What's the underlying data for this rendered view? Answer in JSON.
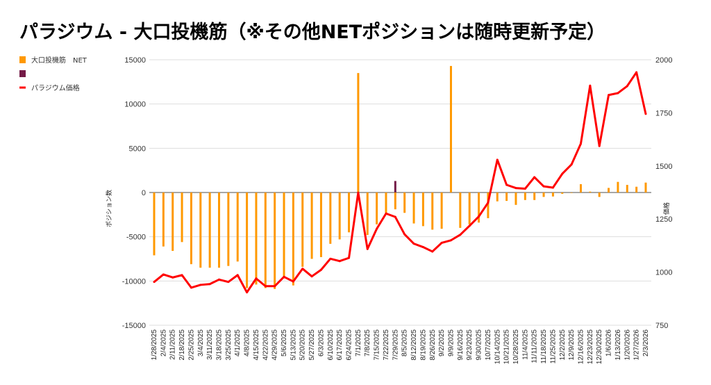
{
  "chart_data": {
    "type": "bar+line",
    "title": "パラジウム - 大口投機筋（※その他NETポジションは随時更新予定）",
    "ylabel_left": "ポジション数",
    "ylabel_right": "価格",
    "ylim_left": [
      -15000,
      15000
    ],
    "yticks_left": [
      15000,
      10000,
      5000,
      0,
      -5000,
      -10000,
      -15000
    ],
    "ylim_right": [
      750,
      2000
    ],
    "yticks_right": [
      2000,
      1750,
      1500,
      1250,
      1000,
      750
    ],
    "grid": true,
    "legend_placement": "top-left",
    "categories": [
      "1/28/2025",
      "2/4/2025",
      "2/11/2025",
      "2/18/2025",
      "2/25/2025",
      "3/4/2025",
      "3/11/2025",
      "3/18/2025",
      "3/25/2025",
      "4/1/2025",
      "4/8/2025",
      "4/15/2025",
      "4/22/2025",
      "4/29/2025",
      "5/6/2025",
      "5/13/2025",
      "5/20/2025",
      "5/27/2025",
      "6/3/2025",
      "6/10/2025",
      "6/17/2025",
      "6/24/2025",
      "7/1/2025",
      "7/8/2025",
      "7/15/2025",
      "7/22/2025",
      "7/29/2025",
      "8/5/2025",
      "8/12/2025",
      "8/19/2025",
      "8/26/2025",
      "9/2/2025",
      "9/9/2025",
      "9/16/2025",
      "9/23/2025",
      "9/30/2025",
      "10/7/2025",
      "10/14/2025",
      "10/21/2025",
      "10/28/2025",
      "11/4/2025",
      "11/11/2025",
      "11/18/2025",
      "11/25/2025",
      "12/2/2025",
      "12/9/2025",
      "12/16/2025",
      "12/23/2025",
      "12/30/2025",
      "1/6/2026",
      "1/13/2026",
      "1/20/2026",
      "1/27/2026",
      "2/3/2026"
    ],
    "series": [
      {
        "name": "大口投機筋　NET",
        "type": "bar",
        "axis": "left",
        "color": "#ff9900",
        "values": [
          -7100,
          -6100,
          -6600,
          -5600,
          -8100,
          -8500,
          -8500,
          -8500,
          -8300,
          -7800,
          -10800,
          -10400,
          -10800,
          -10900,
          -9700,
          -10500,
          -8400,
          -7500,
          -7300,
          -5800,
          -5300,
          -4500,
          13500,
          -4800,
          -3600,
          -2300,
          -1900,
          -2300,
          -3500,
          -3800,
          -4200,
          -4100,
          14300,
          -4000,
          -3600,
          -3400,
          -2900,
          -1000,
          -950,
          -1400,
          -850,
          -850,
          -500,
          -450,
          -150,
          -50,
          940,
          100,
          -500,
          520,
          1200,
          860,
          650,
          1120
        ]
      },
      {
        "name": "",
        "type": "bar",
        "axis": "left",
        "color": "#741b47",
        "values": [
          null,
          null,
          null,
          null,
          null,
          null,
          null,
          null,
          null,
          null,
          null,
          null,
          null,
          null,
          null,
          null,
          null,
          null,
          null,
          null,
          null,
          null,
          null,
          null,
          null,
          null,
          1300,
          null,
          null,
          null,
          null,
          null,
          null,
          null,
          null,
          null,
          null,
          null,
          null,
          null,
          null,
          null,
          null,
          null,
          null,
          null,
          null,
          null,
          null,
          null,
          null,
          null,
          null,
          null
        ]
      },
      {
        "name": "パラジウム価格",
        "type": "line",
        "axis": "right",
        "color": "#ff0000",
        "values": [
          954,
          989,
          975,
          986,
          927,
          940,
          944,
          965,
          954,
          986,
          905,
          970,
          934,
          934,
          978,
          956,
          1016,
          980,
          1011,
          1063,
          1052,
          1067,
          1374,
          1109,
          1204,
          1276,
          1260,
          1178,
          1134,
          1118,
          1097,
          1138,
          1150,
          1176,
          1218,
          1262,
          1327,
          1529,
          1411,
          1396,
          1393,
          1447,
          1404,
          1398,
          1463,
          1507,
          1605,
          1878,
          1594,
          1834,
          1843,
          1876,
          1941,
          1745
        ]
      }
    ]
  }
}
